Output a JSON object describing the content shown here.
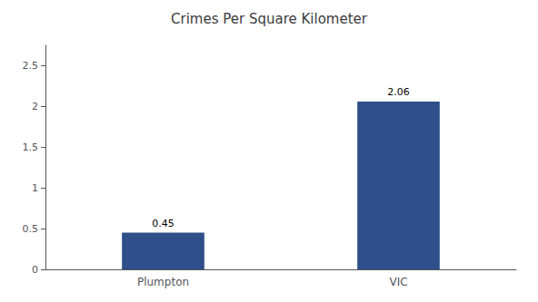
{
  "chart_data": {
    "type": "bar",
    "title": "Crimes Per Square Kilometer",
    "categories": [
      "Plumpton",
      "VIC"
    ],
    "values": [
      0.45,
      2.06
    ],
    "color": "#2e4f8a",
    "ylim": [
      0,
      2.75
    ],
    "yticks": [
      0,
      0.5,
      1,
      1.5,
      2,
      2.5
    ],
    "grid": false,
    "data_labels": true
  }
}
